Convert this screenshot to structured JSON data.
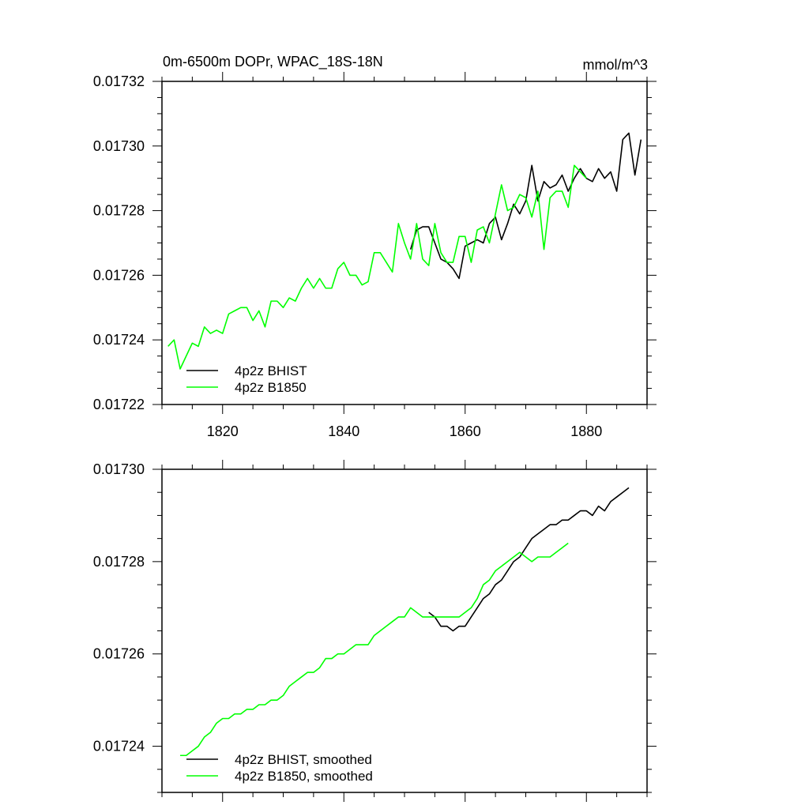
{
  "chart_data": [
    {
      "type": "line",
      "title": "0m-6500m DOPr, WPAC_18S-18N",
      "units": "mmol/m^3",
      "xlabel": "",
      "ylabel": "",
      "xlim": [
        1810,
        1890
      ],
      "ylim": [
        0.01722,
        0.01732
      ],
      "xticks": [
        1820,
        1840,
        1860,
        1880
      ],
      "xtick_labels": [
        "1820",
        "1840",
        "1860",
        "1880"
      ],
      "yticks": [
        0.01722,
        0.01724,
        0.01726,
        0.01728,
        0.0173,
        0.01732
      ],
      "ytick_labels": [
        "0.01722",
        "0.01724",
        "0.01726",
        "0.01728",
        "0.01730",
        "0.01732"
      ],
      "grid": false,
      "legend": "bottom-left",
      "series": [
        {
          "name": "4p2z BHIST",
          "color": "#000000",
          "x": [
            1851,
            1852,
            1853,
            1854,
            1855,
            1856,
            1857,
            1858,
            1859,
            1860,
            1861,
            1862,
            1863,
            1864,
            1865,
            1866,
            1867,
            1868,
            1869,
            1870,
            1871,
            1872,
            1873,
            1874,
            1875,
            1876,
            1877,
            1878,
            1879,
            1880,
            1881,
            1882,
            1883,
            1884,
            1885,
            1886,
            1887,
            1888,
            1889
          ],
          "y": [
            0.017268,
            0.017274,
            0.017275,
            0.017275,
            0.01727,
            0.017265,
            0.017264,
            0.017262,
            0.017259,
            0.017269,
            0.01727,
            0.017271,
            0.01727,
            0.017276,
            0.017278,
            0.017271,
            0.017276,
            0.017282,
            0.017279,
            0.017283,
            0.017294,
            0.017283,
            0.017289,
            0.017287,
            0.017288,
            0.017291,
            0.017286,
            0.01729,
            0.017293,
            0.01729,
            0.017289,
            0.017293,
            0.01729,
            0.017292,
            0.017286,
            0.017302,
            0.017304,
            0.017291,
            0.017302
          ]
        },
        {
          "name": "4p2z B1850",
          "color": "#00ff00",
          "x": [
            1811,
            1812,
            1813,
            1814,
            1815,
            1816,
            1817,
            1818,
            1819,
            1820,
            1821,
            1822,
            1823,
            1824,
            1825,
            1826,
            1827,
            1828,
            1829,
            1830,
            1831,
            1832,
            1833,
            1834,
            1835,
            1836,
            1837,
            1838,
            1839,
            1840,
            1841,
            1842,
            1843,
            1844,
            1845,
            1846,
            1847,
            1848,
            1849,
            1850,
            1851,
            1852,
            1853,
            1854,
            1855,
            1856,
            1857,
            1858,
            1859,
            1860,
            1861,
            1862,
            1863,
            1864,
            1865,
            1866,
            1867,
            1868,
            1869,
            1870,
            1871,
            1872,
            1873,
            1874,
            1875,
            1876,
            1877,
            1878,
            1879,
            1880
          ],
          "y": [
            0.017238,
            0.01724,
            0.017231,
            0.017235,
            0.017239,
            0.017238,
            0.017244,
            0.017242,
            0.017243,
            0.017242,
            0.017248,
            0.017249,
            0.01725,
            0.01725,
            0.017246,
            0.017249,
            0.017244,
            0.017252,
            0.017252,
            0.01725,
            0.017253,
            0.017252,
            0.017256,
            0.017259,
            0.017256,
            0.017259,
            0.017256,
            0.017256,
            0.017262,
            0.017264,
            0.01726,
            0.01726,
            0.017257,
            0.017258,
            0.017267,
            0.017267,
            0.017264,
            0.017261,
            0.017276,
            0.01727,
            0.017265,
            0.017276,
            0.017265,
            0.017263,
            0.017276,
            0.017267,
            0.017264,
            0.017264,
            0.017272,
            0.017272,
            0.017264,
            0.017274,
            0.017275,
            0.01727,
            0.017279,
            0.017288,
            0.01728,
            0.017281,
            0.017285,
            0.017284,
            0.017278,
            0.017286,
            0.017268,
            0.017284,
            0.017286,
            0.017286,
            0.017281,
            0.017294,
            0.017292,
            0.01729
          ]
        }
      ]
    },
    {
      "type": "line",
      "title": "",
      "units": "",
      "xlabel": "",
      "ylabel": "",
      "xlim": [
        1810,
        1890
      ],
      "ylim": [
        0.01723,
        0.0173
      ],
      "xticks": [
        1820,
        1840,
        1860,
        1880
      ],
      "xtick_labels": [],
      "yticks": [
        0.01724,
        0.01726,
        0.01728,
        0.0173
      ],
      "ytick_labels": [
        "0.01724",
        "0.01726",
        "0.01728",
        "0.01730"
      ],
      "grid": false,
      "legend": "bottom-left",
      "series": [
        {
          "name": "4p2z BHIST, smoothed",
          "color": "#000000",
          "x": [
            1854,
            1855,
            1856,
            1857,
            1858,
            1859,
            1860,
            1861,
            1862,
            1863,
            1864,
            1865,
            1866,
            1867,
            1868,
            1869,
            1870,
            1871,
            1872,
            1873,
            1874,
            1875,
            1876,
            1877,
            1878,
            1879,
            1880,
            1881,
            1882,
            1883,
            1884,
            1885,
            1886,
            1887
          ],
          "y": [
            0.017269,
            0.017268,
            0.017266,
            0.017266,
            0.017265,
            0.017266,
            0.017266,
            0.017268,
            0.01727,
            0.017272,
            0.017273,
            0.017275,
            0.017276,
            0.017278,
            0.01728,
            0.017281,
            0.017283,
            0.017285,
            0.017286,
            0.017287,
            0.017288,
            0.017288,
            0.017289,
            0.017289,
            0.01729,
            0.017291,
            0.017291,
            0.01729,
            0.017292,
            0.017291,
            0.017293,
            0.017294,
            0.017295,
            0.017296
          ]
        },
        {
          "name": "4p2z B1850, smoothed",
          "color": "#00ff00",
          "x": [
            1813,
            1814,
            1815,
            1816,
            1817,
            1818,
            1819,
            1820,
            1821,
            1822,
            1823,
            1824,
            1825,
            1826,
            1827,
            1828,
            1829,
            1830,
            1831,
            1832,
            1833,
            1834,
            1835,
            1836,
            1837,
            1838,
            1839,
            1840,
            1841,
            1842,
            1843,
            1844,
            1845,
            1846,
            1847,
            1848,
            1849,
            1850,
            1851,
            1852,
            1853,
            1854,
            1855,
            1856,
            1857,
            1858,
            1859,
            1860,
            1861,
            1862,
            1863,
            1864,
            1865,
            1866,
            1867,
            1868,
            1869,
            1870,
            1871,
            1872,
            1873,
            1874,
            1875,
            1876,
            1877
          ],
          "y": [
            0.017238,
            0.017238,
            0.017239,
            0.01724,
            0.017242,
            0.017243,
            0.017245,
            0.017246,
            0.017246,
            0.017247,
            0.017247,
            0.017248,
            0.017248,
            0.017249,
            0.017249,
            0.01725,
            0.01725,
            0.017251,
            0.017253,
            0.017254,
            0.017255,
            0.017256,
            0.017256,
            0.017257,
            0.017259,
            0.017259,
            0.01726,
            0.01726,
            0.017261,
            0.017262,
            0.017262,
            0.017262,
            0.017264,
            0.017265,
            0.017266,
            0.017267,
            0.017268,
            0.017268,
            0.01727,
            0.017269,
            0.017268,
            0.017268,
            0.017268,
            0.017268,
            0.017268,
            0.017268,
            0.017268,
            0.017269,
            0.01727,
            0.017272,
            0.017275,
            0.017276,
            0.017278,
            0.017279,
            0.01728,
            0.017281,
            0.017282,
            0.017281,
            0.01728,
            0.017281,
            0.017281,
            0.017281,
            0.017282,
            0.017283,
            0.017284
          ]
        }
      ]
    }
  ]
}
